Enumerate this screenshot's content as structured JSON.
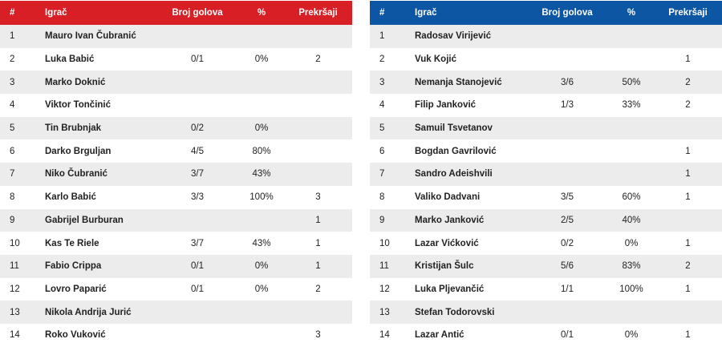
{
  "left_team": {
    "headers": {
      "num": "#",
      "player": "Igrač",
      "goals": "Broj golova",
      "pct": "%",
      "fouls": "Prekršaji"
    },
    "colors": {
      "header_bg": "#d81f26"
    },
    "rows": [
      {
        "num": "1",
        "player": "Mauro Ivan Čubranić",
        "goals": "",
        "pct": "",
        "fouls": ""
      },
      {
        "num": "2",
        "player": "Luka Babić",
        "goals": "0/1",
        "pct": "0%",
        "fouls": "2"
      },
      {
        "num": "3",
        "player": "Marko Doknić",
        "goals": "",
        "pct": "",
        "fouls": ""
      },
      {
        "num": "4",
        "player": "Viktor Tončinić",
        "goals": "",
        "pct": "",
        "fouls": ""
      },
      {
        "num": "5",
        "player": "Tin Brubnjak",
        "goals": "0/2",
        "pct": "0%",
        "fouls": ""
      },
      {
        "num": "6",
        "player": "Darko Brguljan",
        "goals": "4/5",
        "pct": "80%",
        "fouls": ""
      },
      {
        "num": "7",
        "player": "Niko Čubranić",
        "goals": "3/7",
        "pct": "43%",
        "fouls": ""
      },
      {
        "num": "8",
        "player": "Karlo Babić",
        "goals": "3/3",
        "pct": "100%",
        "fouls": "3"
      },
      {
        "num": "9",
        "player": "Gabrijel Burburan",
        "goals": "",
        "pct": "",
        "fouls": "1"
      },
      {
        "num": "10",
        "player": "Kas Te Riele",
        "goals": "3/7",
        "pct": "43%",
        "fouls": "1"
      },
      {
        "num": "11",
        "player": "Fabio Crippa",
        "goals": "0/1",
        "pct": "0%",
        "fouls": "1"
      },
      {
        "num": "12",
        "player": "Lovro Paparić",
        "goals": "0/1",
        "pct": "0%",
        "fouls": "2"
      },
      {
        "num": "13",
        "player": "Nikola Andrija Jurić",
        "goals": "",
        "pct": "",
        "fouls": ""
      },
      {
        "num": "14",
        "player": "Roko Vuković",
        "goals": "",
        "pct": "",
        "fouls": "3"
      }
    ]
  },
  "right_team": {
    "headers": {
      "num": "#",
      "player": "Igrač",
      "goals": "Broj golova",
      "pct": "%",
      "fouls": "Prekršaji"
    },
    "colors": {
      "header_bg": "#0c56a4"
    },
    "rows": [
      {
        "num": "1",
        "player": "Radosav Virijević",
        "goals": "",
        "pct": "",
        "fouls": ""
      },
      {
        "num": "2",
        "player": "Vuk Kojić",
        "goals": "",
        "pct": "",
        "fouls": "1"
      },
      {
        "num": "3",
        "player": "Nemanja Stanojević",
        "goals": "3/6",
        "pct": "50%",
        "fouls": "2"
      },
      {
        "num": "4",
        "player": "Filip Janković",
        "goals": "1/3",
        "pct": "33%",
        "fouls": "2"
      },
      {
        "num": "5",
        "player": "Samuil Tsvetanov",
        "goals": "",
        "pct": "",
        "fouls": ""
      },
      {
        "num": "6",
        "player": "Bogdan Gavrilović",
        "goals": "",
        "pct": "",
        "fouls": "1"
      },
      {
        "num": "7",
        "player": "Sandro Adeishvili",
        "goals": "",
        "pct": "",
        "fouls": "1"
      },
      {
        "num": "8",
        "player": "Valiko Dadvani",
        "goals": "3/5",
        "pct": "60%",
        "fouls": "1"
      },
      {
        "num": "9",
        "player": "Marko Janković",
        "goals": "2/5",
        "pct": "40%",
        "fouls": ""
      },
      {
        "num": "10",
        "player": "Lazar Vićković",
        "goals": "0/2",
        "pct": "0%",
        "fouls": "1"
      },
      {
        "num": "11",
        "player": "Kristijan Šulc",
        "goals": "5/6",
        "pct": "83%",
        "fouls": "2"
      },
      {
        "num": "12",
        "player": "Luka Pljevančić",
        "goals": "1/1",
        "pct": "100%",
        "fouls": "1"
      },
      {
        "num": "13",
        "player": "Stefan Todorovski",
        "goals": "",
        "pct": "",
        "fouls": ""
      },
      {
        "num": "14",
        "player": "Lazar Antić",
        "goals": "0/1",
        "pct": "0%",
        "fouls": "1"
      }
    ]
  }
}
